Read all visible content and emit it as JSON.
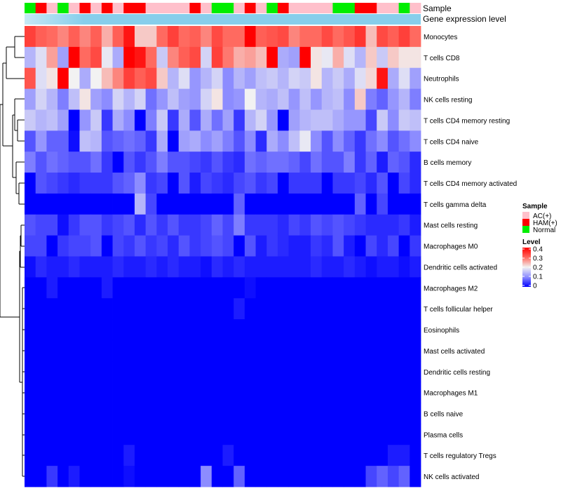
{
  "chart_data": {
    "type": "heatmap",
    "annotation_titles": {
      "sample": "Sample",
      "expression": "Gene expression level"
    },
    "legend": {
      "sample_title": "Sample",
      "sample_entries": [
        {
          "key": "AC",
          "label": "AC(+)",
          "color": "#FFC0CB"
        },
        {
          "key": "HAM",
          "label": "HAM(+)",
          "color": "#FF0000"
        },
        {
          "key": "N",
          "label": "Normal",
          "color": "#00EE00"
        }
      ],
      "level_title": "Level",
      "level_ticks": [
        {
          "value": 0.4,
          "label": "0.4"
        },
        {
          "value": 0.3,
          "label": "0.3"
        },
        {
          "value": 0.2,
          "label": "0.2"
        },
        {
          "value": 0.1,
          "label": "0.1"
        },
        {
          "value": 0,
          "label": "0"
        }
      ]
    },
    "color_scale": {
      "min": 0,
      "max": 0.4,
      "stops": [
        {
          "value": 0,
          "color": "#0000FF"
        },
        {
          "value": 0.1,
          "color": "#8C8CFF"
        },
        {
          "value": 0.2,
          "color": "#F2F2F2"
        },
        {
          "value": 0.3,
          "color": "#FF6A60"
        },
        {
          "value": 0.4,
          "color": "#FF0000"
        }
      ]
    },
    "expression_bar_color": "#87CEEB",
    "expression_bar_highlight": "#C6E8F5",
    "samples": [
      "N",
      "HAM",
      "AC",
      "N",
      "AC",
      "HAM",
      "AC",
      "HAM",
      "AC",
      "HAM",
      "HAM",
      "AC",
      "AC",
      "AC",
      "AC",
      "HAM",
      "AC",
      "N",
      "N",
      "AC",
      "HAM",
      "AC",
      "N",
      "HAM",
      "AC",
      "AC",
      "AC",
      "AC",
      "N",
      "N",
      "HAM",
      "HAM",
      "AC",
      "AC",
      "N",
      "AC"
    ],
    "rows": [
      {
        "label": "Monocytes",
        "values": [
          0.34,
          0.31,
          0.3,
          0.28,
          0.31,
          0.28,
          0.31,
          0.25,
          0.31,
          0.38,
          0.23,
          0.23,
          0.3,
          0.34,
          0.3,
          0.31,
          0.28,
          0.33,
          0.3,
          0.3,
          0.4,
          0.31,
          0.32,
          0.33,
          0.28,
          0.3,
          0.3,
          0.33,
          0.3,
          0.32,
          0.35,
          0.24,
          0.33,
          0.31,
          0.34,
          0.3
        ]
      },
      {
        "label": "T cells CD8",
        "values": [
          0.14,
          0.18,
          0.26,
          0.12,
          0.4,
          0.3,
          0.33,
          0.19,
          0.13,
          0.4,
          0.38,
          0.3,
          0.16,
          0.28,
          0.31,
          0.33,
          0.17,
          0.34,
          0.29,
          0.25,
          0.26,
          0.24,
          0.4,
          0.13,
          0.12,
          0.4,
          0.21,
          0.19,
          0.25,
          0.18,
          0.14,
          0.23,
          0.16,
          0.23,
          0.21,
          0.21
        ]
      },
      {
        "label": "Neutrophils",
        "values": [
          0.32,
          0.18,
          0.21,
          0.4,
          0.2,
          0.13,
          0.2,
          0.24,
          0.28,
          0.34,
          0.31,
          0.33,
          0.23,
          0.14,
          0.18,
          0.11,
          0.14,
          0.17,
          0.1,
          0.14,
          0.12,
          0.15,
          0.16,
          0.14,
          0.17,
          0.16,
          0.21,
          0.14,
          0.16,
          0.13,
          0.18,
          0.22,
          0.38,
          0.13,
          0.18,
          0.12
        ]
      },
      {
        "label": "NK cells resting",
        "values": [
          0.12,
          0.17,
          0.14,
          0.09,
          0.15,
          0.21,
          0.12,
          0.1,
          0.17,
          0.14,
          0.17,
          0.08,
          0.11,
          0.15,
          0.12,
          0.11,
          0.17,
          0.21,
          0.1,
          0.11,
          0.2,
          0.14,
          0.13,
          0.15,
          0.11,
          0.15,
          0.11,
          0.14,
          0.15,
          0.1,
          0.23,
          0.09,
          0.07,
          0.11,
          0.14,
          0.09
        ]
      },
      {
        "label": "T cells CD4 memory resting",
        "values": [
          0.16,
          0.14,
          0.15,
          0.12,
          0.0,
          0.11,
          0.16,
          0.04,
          0.13,
          0.1,
          0.0,
          0.09,
          0.16,
          0.04,
          0.13,
          0.06,
          0.13,
          0.08,
          0.12,
          0.04,
          0.14,
          0.17,
          0.11,
          0.0,
          0.12,
          0.14,
          0.15,
          0.15,
          0.13,
          0.11,
          0.11,
          0.05,
          0.16,
          0.1,
          0.16,
          0.15
        ]
      },
      {
        "label": "T cells CD4 naive",
        "values": [
          0.06,
          0.11,
          0.07,
          0.07,
          0.01,
          0.15,
          0.14,
          0.06,
          0.07,
          0.08,
          0.07,
          0.04,
          0.13,
          0.0,
          0.12,
          0.13,
          0.1,
          0.12,
          0.09,
          0.06,
          0.1,
          0.03,
          0.13,
          0.1,
          0.15,
          0.19,
          0.1,
          0.06,
          0.1,
          0.07,
          0.04,
          0.08,
          0.1,
          0.06,
          0.08,
          0.1
        ]
      },
      {
        "label": "B cells memory",
        "values": [
          0.09,
          0.06,
          0.08,
          0.07,
          0.06,
          0.06,
          0.08,
          0.04,
          0.0,
          0.06,
          0.04,
          0.06,
          0.09,
          0.06,
          0.06,
          0.05,
          0.04,
          0.06,
          0.04,
          0.03,
          0.08,
          0.07,
          0.08,
          0.08,
          0.07,
          0.05,
          0.08,
          0.06,
          0.06,
          0.09,
          0.04,
          0.07,
          0.02,
          0.07,
          0.06,
          0.03
        ]
      },
      {
        "label": "T cells CD4 memory activated",
        "values": [
          0.0,
          0.06,
          0.05,
          0.04,
          0.03,
          0.04,
          0.04,
          0.04,
          0.06,
          0.07,
          0.1,
          0.04,
          0.05,
          0.0,
          0.06,
          0.02,
          0.05,
          0.04,
          0.03,
          0.05,
          0.06,
          0.04,
          0.05,
          0.0,
          0.04,
          0.04,
          0.04,
          0.0,
          0.04,
          0.04,
          0.05,
          0.03,
          0.06,
          0.0,
          0.05,
          0.03
        ]
      },
      {
        "label": "T cells gamma delta",
        "values": [
          0.0,
          0.0,
          0.0,
          0.0,
          0.0,
          0.0,
          0.0,
          0.0,
          0.0,
          0.0,
          0.14,
          0.05,
          0.0,
          0.0,
          0.0,
          0.0,
          0.0,
          0.0,
          0.0,
          0.07,
          0.0,
          0.0,
          0.0,
          0.0,
          0.0,
          0.0,
          0.0,
          0.0,
          0.0,
          0.0,
          0.07,
          0.0,
          0.05,
          0.0,
          0.0,
          0.0
        ]
      },
      {
        "label": "Mast cells resting",
        "values": [
          0.06,
          0.05,
          0.05,
          0.01,
          0.04,
          0.06,
          0.06,
          0.04,
          0.05,
          0.06,
          0.03,
          0.06,
          0.04,
          0.06,
          0.04,
          0.04,
          0.05,
          0.07,
          0.05,
          0.09,
          0.04,
          0.04,
          0.04,
          0.03,
          0.05,
          0.04,
          0.06,
          0.05,
          0.06,
          0.05,
          0.04,
          0.03,
          0.03,
          0.03,
          0.04,
          0.02
        ]
      },
      {
        "label": "Macrophages M0",
        "values": [
          0.05,
          0.05,
          0.0,
          0.04,
          0.05,
          0.05,
          0.06,
          0.0,
          0.05,
          0.04,
          0.06,
          0.04,
          0.05,
          0.03,
          0.06,
          0.04,
          0.05,
          0.06,
          0.05,
          0.0,
          0.06,
          0.02,
          0.04,
          0.03,
          0.02,
          0.02,
          0.04,
          0.03,
          0.06,
          0.02,
          0.0,
          0.05,
          0.03,
          0.05,
          0.0,
          0.04
        ]
      },
      {
        "label": "Dendritic cells activated",
        "values": [
          0.01,
          0.03,
          0.02,
          0.02,
          0.03,
          0.02,
          0.02,
          0.02,
          0.03,
          0.02,
          0.02,
          0.03,
          0.02,
          0.03,
          0.02,
          0.02,
          0.01,
          0.03,
          0.02,
          0.03,
          0.02,
          0.02,
          0.02,
          0.02,
          0.02,
          0.02,
          0.03,
          0.02,
          0.02,
          0.03,
          0.02,
          0.01,
          0.02,
          0.02,
          0.01,
          0.02
        ]
      },
      {
        "label": "Macrophages M2",
        "values": [
          0.0,
          0.0,
          0.02,
          0.0,
          0.0,
          0.0,
          0.0,
          0.02,
          0.0,
          0.0,
          0.0,
          0.0,
          0.0,
          0.0,
          0.0,
          0.0,
          0.0,
          0.0,
          0.0,
          0.0,
          0.01,
          0.0,
          0.0,
          0.0,
          0.0,
          0.0,
          0.0,
          0.0,
          0.0,
          0.0,
          0.0,
          0.0,
          0.0,
          0.0,
          0.0,
          0.0
        ]
      },
      {
        "label": "T cells follicular helper",
        "values": [
          0.0,
          0.0,
          0.0,
          0.0,
          0.0,
          0.0,
          0.0,
          0.0,
          0.0,
          0.0,
          0.0,
          0.0,
          0.0,
          0.0,
          0.0,
          0.0,
          0.0,
          0.0,
          0.0,
          0.02,
          0.0,
          0.0,
          0.0,
          0.0,
          0.0,
          0.0,
          0.0,
          0.0,
          0.0,
          0.0,
          0.0,
          0.0,
          0.0,
          0.0,
          0.0,
          0.0
        ]
      },
      {
        "label": "Eosinophils",
        "values": [
          0.0,
          0.0,
          0.0,
          0.0,
          0.0,
          0.0,
          0.0,
          0.0,
          0.0,
          0.0,
          0.0,
          0.0,
          0.0,
          0.0,
          0.0,
          0.0,
          0.0,
          0.0,
          0.0,
          0.0,
          0.0,
          0.0,
          0.0,
          0.0,
          0.0,
          0.0,
          0.0,
          0.0,
          0.0,
          0.0,
          0.0,
          0.0,
          0.0,
          0.0,
          0.0,
          0.0
        ]
      },
      {
        "label": "Mast cells activated",
        "values": [
          0.0,
          0.0,
          0.0,
          0.0,
          0.0,
          0.0,
          0.0,
          0.0,
          0.0,
          0.0,
          0.0,
          0.0,
          0.0,
          0.0,
          0.0,
          0.0,
          0.0,
          0.0,
          0.0,
          0.0,
          0.0,
          0.0,
          0.0,
          0.0,
          0.0,
          0.0,
          0.0,
          0.0,
          0.0,
          0.0,
          0.0,
          0.0,
          0.0,
          0.0,
          0.0,
          0.0
        ]
      },
      {
        "label": "Dendritic cells resting",
        "values": [
          0.0,
          0.0,
          0.0,
          0.0,
          0.0,
          0.0,
          0.0,
          0.0,
          0.0,
          0.0,
          0.0,
          0.0,
          0.0,
          0.0,
          0.0,
          0.0,
          0.0,
          0.0,
          0.0,
          0.0,
          0.0,
          0.0,
          0.0,
          0.0,
          0.0,
          0.0,
          0.0,
          0.0,
          0.0,
          0.0,
          0.0,
          0.0,
          0.0,
          0.0,
          0.0,
          0.0
        ]
      },
      {
        "label": "Macrophages M1",
        "values": [
          0.0,
          0.0,
          0.0,
          0.0,
          0.0,
          0.0,
          0.0,
          0.0,
          0.0,
          0.0,
          0.0,
          0.0,
          0.0,
          0.0,
          0.0,
          0.0,
          0.0,
          0.0,
          0.0,
          0.0,
          0.0,
          0.0,
          0.0,
          0.0,
          0.0,
          0.0,
          0.0,
          0.0,
          0.0,
          0.0,
          0.0,
          0.0,
          0.0,
          0.0,
          0.0,
          0.0
        ]
      },
      {
        "label": "B cells naive",
        "values": [
          0.0,
          0.0,
          0.0,
          0.0,
          0.0,
          0.0,
          0.0,
          0.0,
          0.0,
          0.0,
          0.0,
          0.0,
          0.0,
          0.0,
          0.0,
          0.0,
          0.0,
          0.0,
          0.0,
          0.0,
          0.0,
          0.0,
          0.0,
          0.0,
          0.0,
          0.0,
          0.0,
          0.0,
          0.0,
          0.0,
          0.0,
          0.0,
          0.0,
          0.0,
          0.0,
          0.0
        ]
      },
      {
        "label": "Plasma cells",
        "values": [
          0.0,
          0.0,
          0.0,
          0.0,
          0.0,
          0.0,
          0.0,
          0.0,
          0.0,
          0.0,
          0.0,
          0.0,
          0.0,
          0.0,
          0.0,
          0.0,
          0.0,
          0.0,
          0.0,
          0.0,
          0.0,
          0.0,
          0.0,
          0.0,
          0.0,
          0.0,
          0.0,
          0.0,
          0.0,
          0.0,
          0.0,
          0.0,
          0.0,
          0.0,
          0.0,
          0.0
        ]
      },
      {
        "label": "T cells regulatory  Tregs",
        "values": [
          0.0,
          0.0,
          0.0,
          0.0,
          0.0,
          0.0,
          0.0,
          0.0,
          0.0,
          0.02,
          0.0,
          0.0,
          0.0,
          0.0,
          0.0,
          0.0,
          0.0,
          0.0,
          0.02,
          0.0,
          0.0,
          0.0,
          0.0,
          0.0,
          0.0,
          0.0,
          0.0,
          0.0,
          0.0,
          0.0,
          0.0,
          0.0,
          0.0,
          0.02,
          0.02,
          0.0
        ]
      },
      {
        "label": "NK cells activated",
        "values": [
          0.0,
          0.0,
          0.04,
          0.0,
          0.02,
          0.0,
          0.0,
          0.0,
          0.0,
          0.01,
          0.0,
          0.0,
          0.0,
          0.0,
          0.0,
          0.0,
          0.1,
          0.0,
          0.0,
          0.07,
          0.0,
          0.0,
          0.0,
          0.0,
          0.0,
          0.0,
          0.0,
          0.0,
          0.0,
          0.0,
          0.0,
          0.05,
          0.07,
          0.05,
          0.07,
          0.0
        ]
      }
    ]
  }
}
